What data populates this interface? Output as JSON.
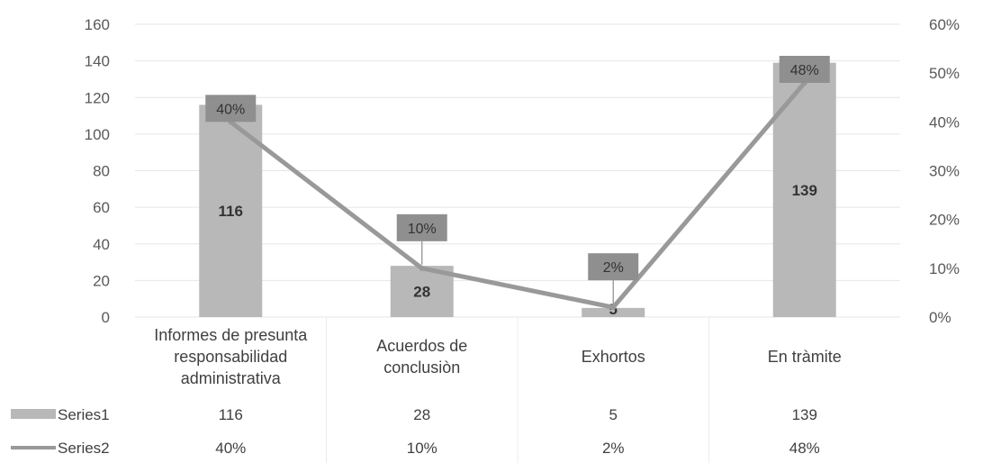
{
  "chart_data": {
    "type": "bar",
    "combo": "bar-line",
    "title": "",
    "categories": [
      [
        "Informes de presunta",
        "responsabilidad",
        "administrativa"
      ],
      [
        "Acuerdos de",
        "conclusiòn"
      ],
      [
        "Exhortos"
      ],
      [
        "En tràmite"
      ]
    ],
    "series": [
      {
        "name": "Series1",
        "type": "bar",
        "axis": "left",
        "values": [
          116,
          28,
          5,
          139
        ],
        "labels": [
          "116",
          "28",
          "5",
          "139"
        ],
        "color": "#b8b8b8"
      },
      {
        "name": "Series2",
        "type": "line",
        "axis": "right",
        "values": [
          0.4,
          0.1,
          0.02,
          0.48
        ],
        "labels": [
          "40%",
          "10%",
          "2%",
          "48%"
        ],
        "color": "#999999"
      }
    ],
    "y_left": {
      "min": 0,
      "max": 160,
      "step": 20,
      "ticks": [
        "0",
        "20",
        "40",
        "60",
        "80",
        "100",
        "120",
        "140",
        "160"
      ]
    },
    "y_right": {
      "min": 0,
      "max": 0.6,
      "step": 0.1,
      "ticks": [
        "0%",
        "10%",
        "20%",
        "30%",
        "40%",
        "50%",
        "60%"
      ]
    },
    "grid": true,
    "legend": "data-table-bottom",
    "data_table": true
  }
}
